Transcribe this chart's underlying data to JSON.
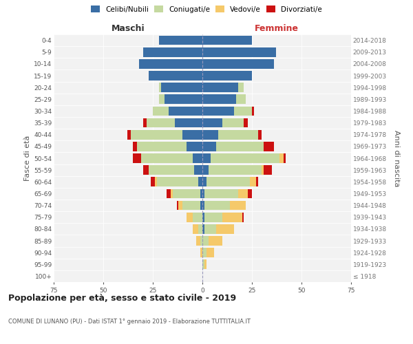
{
  "age_groups": [
    "100+",
    "95-99",
    "90-94",
    "85-89",
    "80-84",
    "75-79",
    "70-74",
    "65-69",
    "60-64",
    "55-59",
    "50-54",
    "45-49",
    "40-44",
    "35-39",
    "30-34",
    "25-29",
    "20-24",
    "15-19",
    "10-14",
    "5-9",
    "0-4"
  ],
  "birth_years": [
    "≤ 1918",
    "1919-1923",
    "1924-1928",
    "1929-1933",
    "1934-1938",
    "1939-1943",
    "1944-1948",
    "1949-1953",
    "1954-1958",
    "1959-1963",
    "1964-1968",
    "1969-1973",
    "1974-1978",
    "1979-1983",
    "1984-1988",
    "1989-1993",
    "1994-1998",
    "1999-2003",
    "2004-2008",
    "2009-2013",
    "2014-2018"
  ],
  "colors": {
    "celibi": "#3a6ea5",
    "coniugati": "#c5d9a0",
    "vedovi": "#f5c96a",
    "divorziati": "#cc1111"
  },
  "male": {
    "celibi": [
      0,
      0,
      0,
      0,
      0,
      0,
      1,
      1,
      2,
      4,
      5,
      8,
      10,
      14,
      17,
      19,
      21,
      27,
      32,
      30,
      22
    ],
    "coniugati": [
      0,
      0,
      0,
      1,
      2,
      5,
      9,
      14,
      21,
      23,
      26,
      25,
      26,
      14,
      8,
      3,
      1,
      0,
      0,
      0,
      0
    ],
    "vedovi": [
      0,
      0,
      1,
      2,
      3,
      3,
      2,
      1,
      1,
      0,
      0,
      0,
      0,
      0,
      0,
      0,
      0,
      0,
      0,
      0,
      0
    ],
    "divorziati": [
      0,
      0,
      0,
      0,
      0,
      0,
      1,
      2,
      2,
      3,
      4,
      2,
      2,
      2,
      0,
      0,
      0,
      0,
      0,
      0,
      0
    ]
  },
  "female": {
    "celibi": [
      0,
      0,
      0,
      0,
      1,
      1,
      1,
      1,
      2,
      3,
      4,
      7,
      8,
      10,
      16,
      17,
      18,
      25,
      36,
      37,
      25
    ],
    "coniugati": [
      0,
      1,
      2,
      3,
      6,
      9,
      13,
      17,
      22,
      27,
      35,
      24,
      20,
      11,
      9,
      5,
      3,
      0,
      0,
      0,
      0
    ],
    "vedovi": [
      0,
      1,
      4,
      7,
      9,
      10,
      8,
      5,
      3,
      1,
      2,
      0,
      0,
      0,
      0,
      0,
      0,
      0,
      0,
      0,
      0
    ],
    "divorziati": [
      0,
      0,
      0,
      0,
      0,
      1,
      0,
      2,
      1,
      4,
      1,
      5,
      2,
      2,
      1,
      0,
      0,
      0,
      0,
      0,
      0
    ]
  },
  "xlim": 75,
  "title": "Popolazione per età, sesso e stato civile - 2019",
  "subtitle": "COMUNE DI LUNANO (PU) - Dati ISTAT 1° gennaio 2019 - Elaborazione TUTTITALIA.IT",
  "ylabel_left": "Fasce di età",
  "ylabel_right": "Anni di nascita",
  "xlabel_left": "Maschi",
  "xlabel_right": "Femmine",
  "background": "#f2f2f2"
}
